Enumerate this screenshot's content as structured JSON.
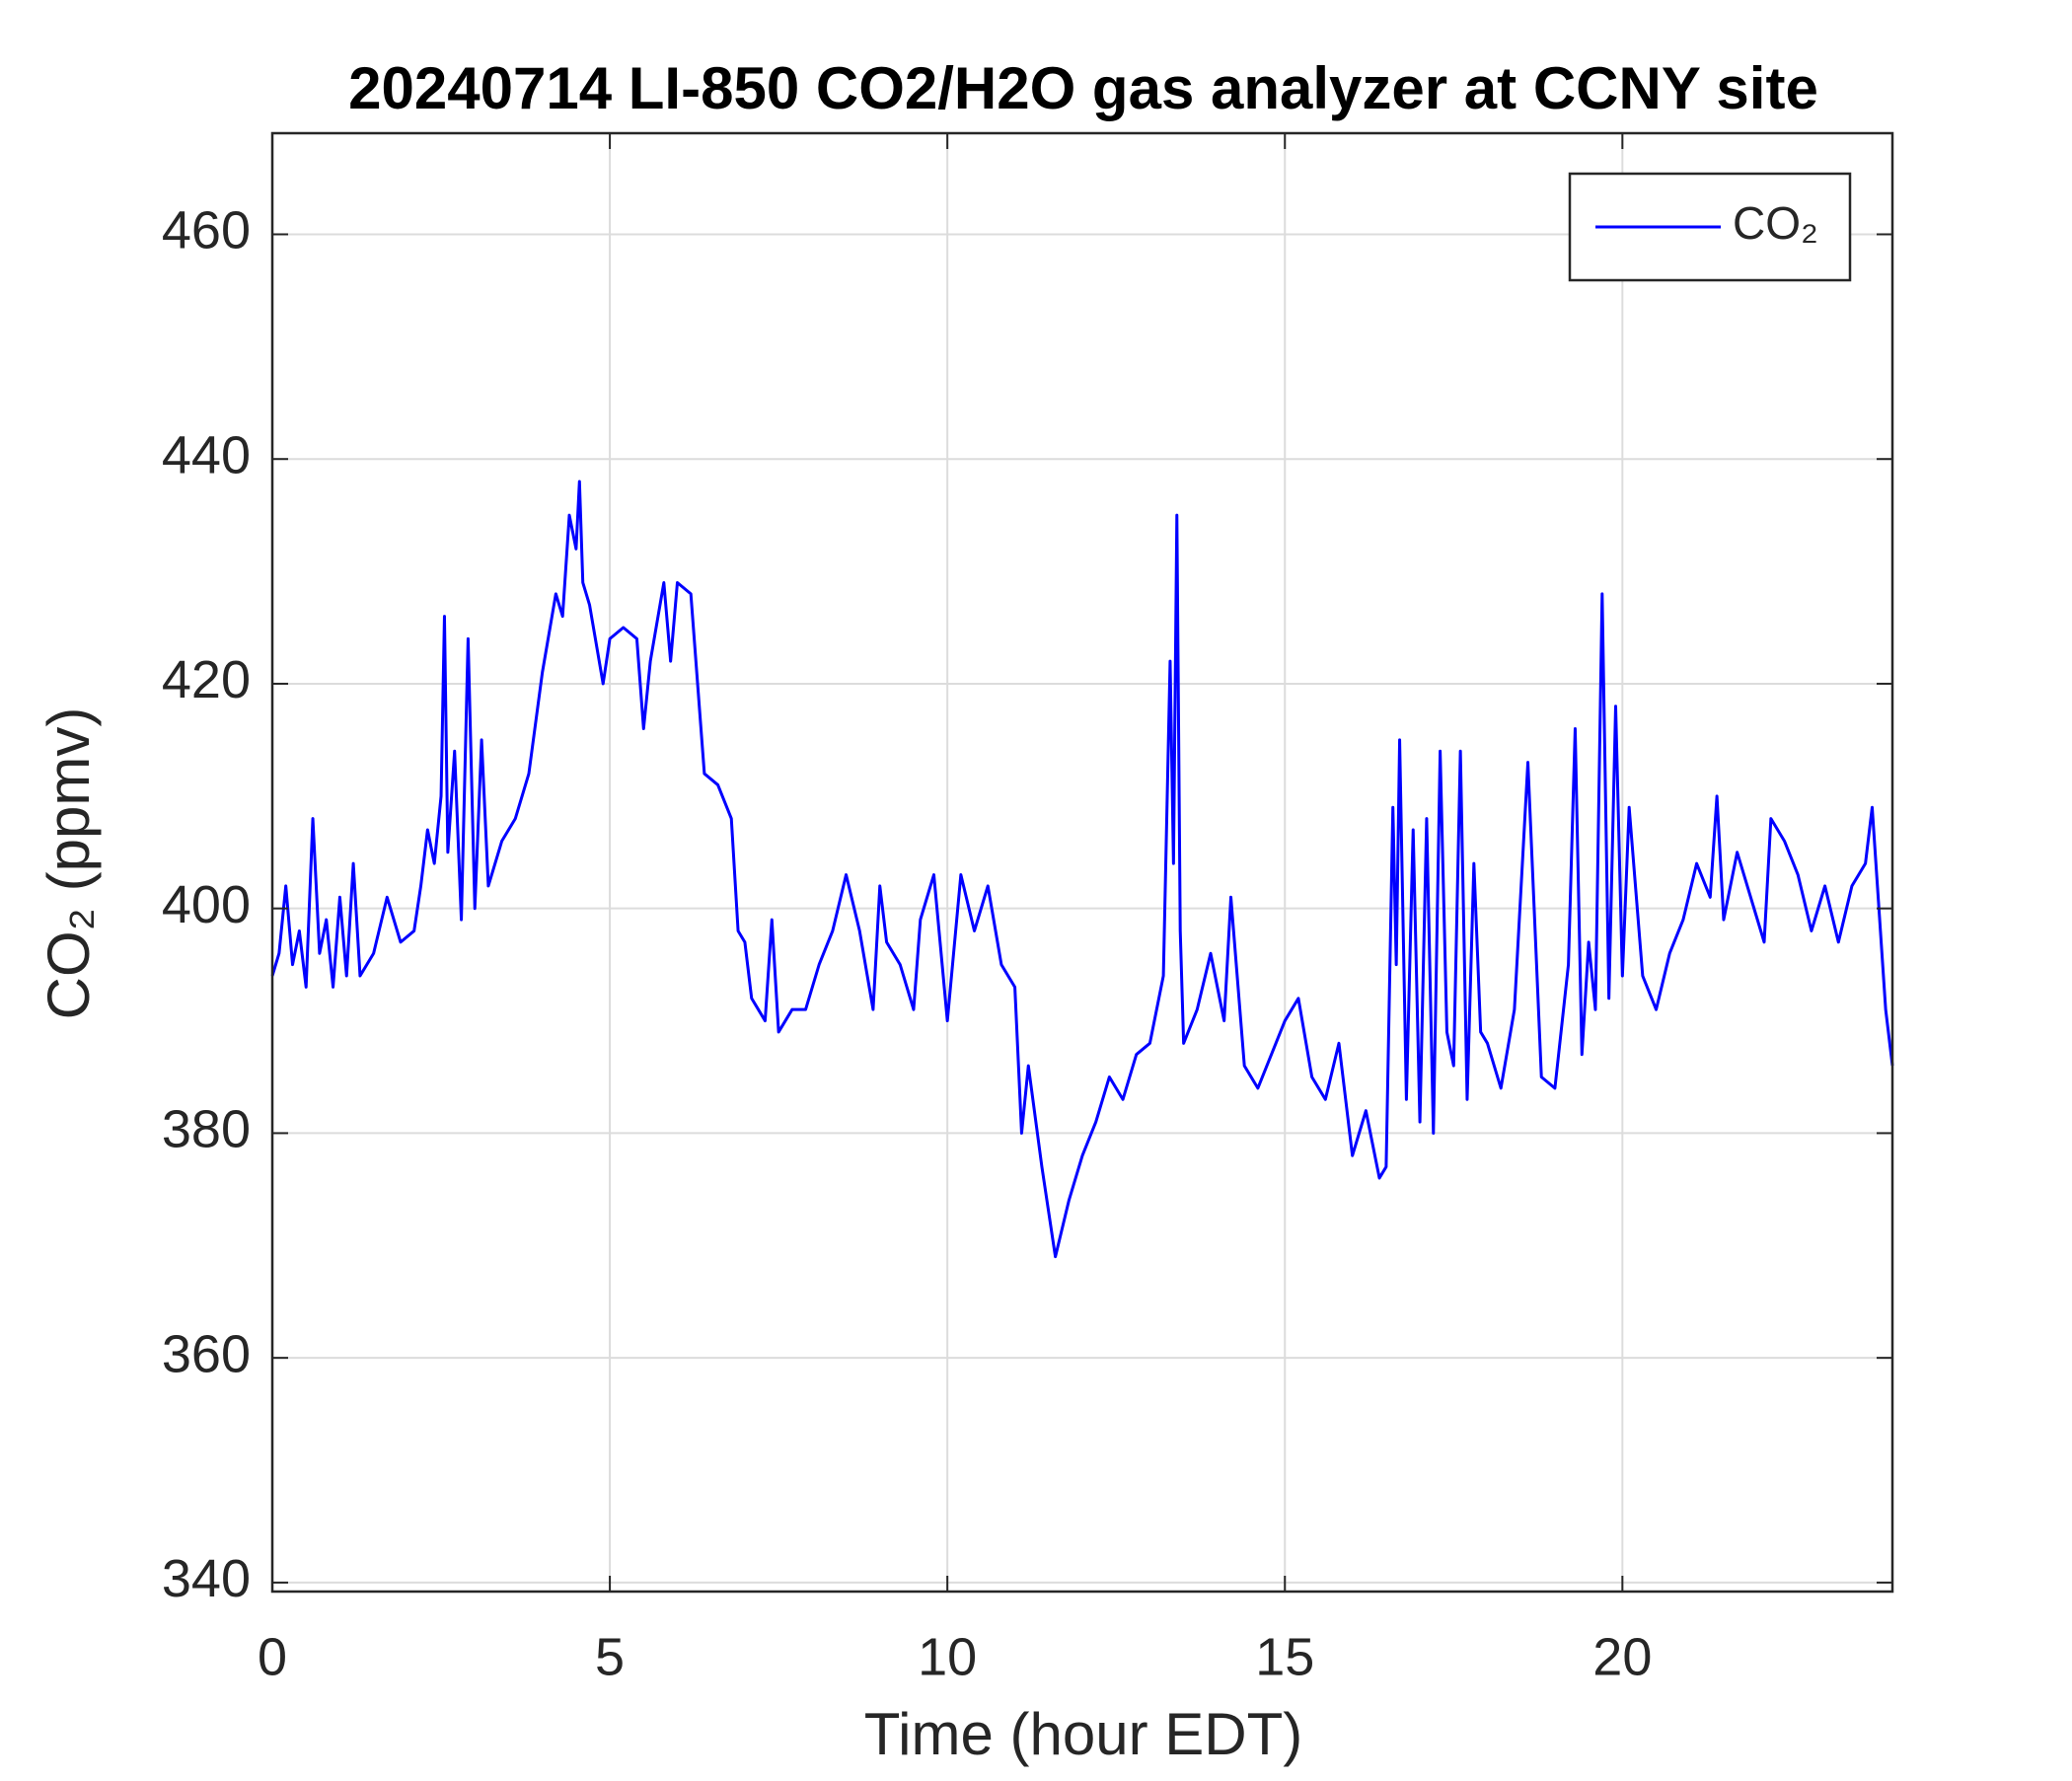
{
  "chart_data": {
    "type": "line",
    "title": "20240714 LI-850 CO2/H2O gas analyzer at CCNY site",
    "x_label": "Time (hour EDT)",
    "y_label": "CO₂ (ppmv)",
    "xlim": [
      0,
      24
    ],
    "xticks": [
      0,
      5,
      10,
      15,
      20
    ],
    "ylim": [
      339.2,
      469
    ],
    "yticks": [
      340,
      360,
      380,
      400,
      420,
      440,
      460
    ],
    "grid": true,
    "legend": "northeast",
    "x": [
      0,
      0.1,
      0.2,
      0.3,
      0.4,
      0.5,
      0.6,
      0.7,
      0.8,
      0.9,
      1.0,
      1.1,
      1.2,
      1.3,
      1.5,
      1.7,
      1.9,
      2.1,
      2.2,
      2.3,
      2.4,
      2.5,
      2.55,
      2.6,
      2.7,
      2.8,
      2.9,
      3.0,
      3.1,
      3.2,
      3.4,
      3.6,
      3.8,
      4.0,
      4.2,
      4.3,
      4.4,
      4.5,
      4.55,
      4.6,
      4.7,
      4.9,
      5.0,
      5.2,
      5.4,
      5.5,
      5.6,
      5.8,
      5.9,
      6.0,
      6.2,
      6.4,
      6.6,
      6.8,
      6.9,
      7.0,
      7.1,
      7.3,
      7.4,
      7.5,
      7.7,
      7.9,
      8.1,
      8.3,
      8.5,
      8.7,
      8.9,
      9.0,
      9.1,
      9.3,
      9.5,
      9.6,
      9.8,
      10.0,
      10.2,
      10.4,
      10.6,
      10.8,
      11.0,
      11.1,
      11.2,
      11.4,
      11.6,
      11.8,
      12.0,
      12.2,
      12.4,
      12.6,
      12.8,
      13.0,
      13.2,
      13.3,
      13.35,
      13.4,
      13.45,
      13.5,
      13.7,
      13.9,
      14.1,
      14.2,
      14.4,
      14.6,
      14.8,
      15.0,
      15.2,
      15.4,
      15.6,
      15.8,
      16.0,
      16.2,
      16.4,
      16.5,
      16.6,
      16.65,
      16.7,
      16.8,
      16.9,
      17.0,
      17.1,
      17.2,
      17.3,
      17.4,
      17.5,
      17.6,
      17.7,
      17.8,
      17.9,
      18.0,
      18.2,
      18.4,
      18.6,
      18.8,
      19.0,
      19.2,
      19.3,
      19.4,
      19.5,
      19.6,
      19.7,
      19.8,
      19.9,
      20.0,
      20.1,
      20.3,
      20.5,
      20.7,
      20.9,
      21.1,
      21.3,
      21.4,
      21.5,
      21.7,
      21.9,
      22.1,
      22.2,
      22.4,
      22.6,
      22.8,
      23.0,
      23.2,
      23.4,
      23.6,
      23.7,
      23.8,
      23.9,
      24.0
    ],
    "series": [
      {
        "name": "CO₂",
        "color": "#0000ff",
        "values": [
          394,
          396,
          402,
          395,
          398,
          393,
          408,
          396,
          399,
          393,
          401,
          394,
          404,
          394,
          396,
          401,
          397,
          398,
          402,
          407,
          404,
          410,
          426,
          405,
          414,
          399,
          424,
          400,
          415,
          402,
          406,
          408,
          412,
          421,
          428,
          426,
          435,
          432,
          438,
          429,
          427,
          420,
          424,
          425,
          424,
          416,
          422,
          429,
          422,
          429,
          428,
          412,
          411,
          408,
          398,
          397,
          392,
          390,
          399,
          389,
          391,
          391,
          395,
          398,
          403,
          398,
          391,
          402,
          397,
          395,
          391,
          399,
          403,
          390,
          403,
          398,
          402,
          395,
          393,
          380,
          386,
          377,
          369,
          374,
          378,
          381,
          385,
          383,
          387,
          388,
          394,
          422,
          404,
          435,
          398,
          388,
          391,
          396,
          390,
          401,
          386,
          384,
          387,
          390,
          392,
          385,
          383,
          388,
          378,
          382,
          376,
          377,
          409,
          395,
          415,
          383,
          407,
          381,
          408,
          380,
          414,
          389,
          386,
          414,
          383,
          404,
          389,
          388,
          384,
          391,
          413,
          385,
          384,
          395,
          416,
          387,
          397,
          391,
          428,
          392,
          418,
          394,
          409,
          394,
          391,
          396,
          399,
          404,
          401,
          410,
          399,
          405,
          401,
          397,
          408,
          406,
          403,
          398,
          402,
          397,
          402,
          404,
          409,
          400,
          391,
          386
        ]
      }
    ]
  }
}
